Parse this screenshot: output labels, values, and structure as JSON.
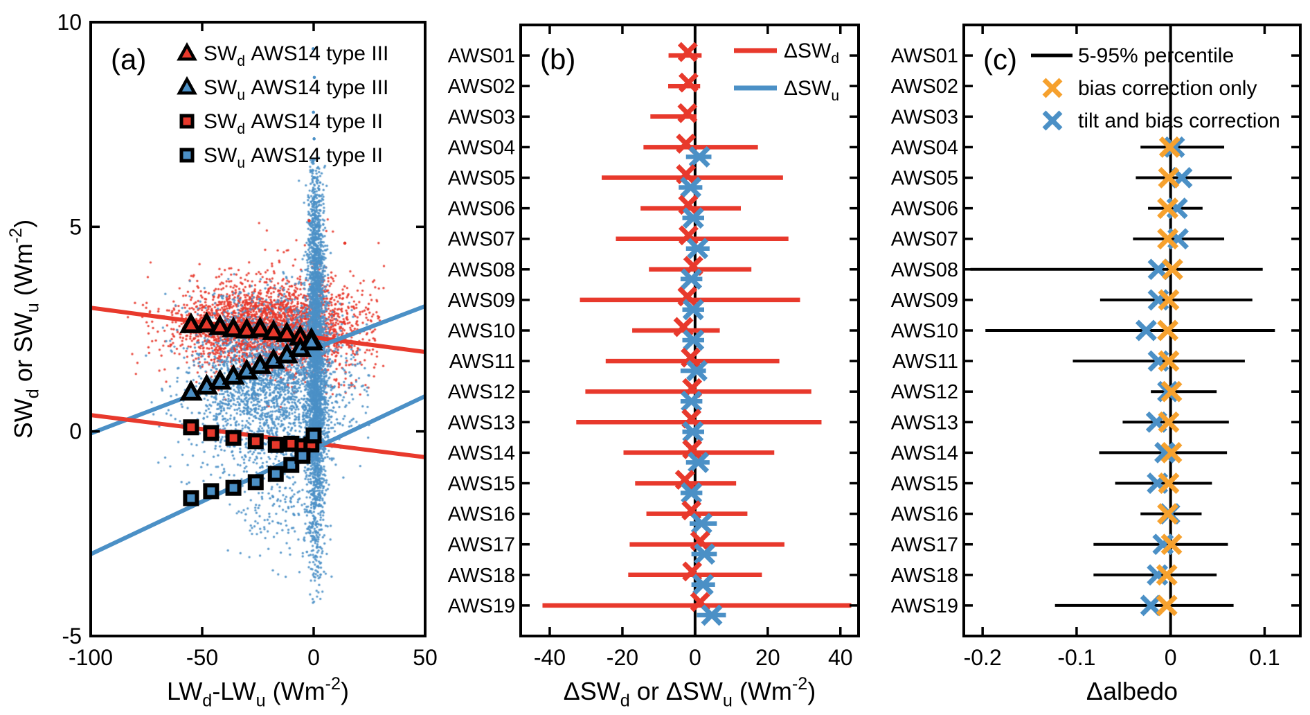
{
  "colors": {
    "red": "#e8392c",
    "blue": "#4b90c6",
    "orange": "#f6a12e",
    "axis": "#000000",
    "background": "#ffffff"
  },
  "chart_data": [
    {
      "id": "a",
      "type": "scatter",
      "panel_label": "(a)",
      "xlim": [
        -100,
        50
      ],
      "ylim": [
        -5,
        10
      ],
      "xticks": [
        -100,
        -50,
        0,
        50
      ],
      "yticks": [
        -5,
        0,
        5,
        10
      ],
      "xlabel": [
        [
          "LW"
        ],
        [
          "d",
          "sub"
        ],
        [
          "-LW"
        ],
        [
          "u",
          "sub"
        ],
        [
          " (Wm"
        ],
        [
          "-2",
          "sup"
        ],
        [
          ")"
        ]
      ],
      "ylabel": [
        [
          "SW"
        ],
        [
          "d",
          "sub"
        ],
        [
          " or SW"
        ],
        [
          "u",
          "sub"
        ],
        [
          " (Wm"
        ],
        [
          "-2",
          "sup"
        ],
        [
          ")"
        ]
      ],
      "legend": [
        {
          "marker": "triangle",
          "color": "red",
          "label": [
            [
              "SW"
            ],
            [
              "d",
              "sub"
            ],
            [
              " AWS14 type III"
            ]
          ]
        },
        {
          "marker": "triangle",
          "color": "blue",
          "label": [
            [
              "SW"
            ],
            [
              "u",
              "sub"
            ],
            [
              " AWS14 type III"
            ]
          ]
        },
        {
          "marker": "square",
          "color": "red",
          "label": [
            [
              "SW"
            ],
            [
              "d",
              "sub"
            ],
            [
              " AWS14 type II"
            ]
          ]
        },
        {
          "marker": "square",
          "color": "blue",
          "label": [
            [
              "SW"
            ],
            [
              "u",
              "sub"
            ],
            [
              " AWS14 type II"
            ]
          ]
        }
      ],
      "fit_lines": [
        {
          "name": "swd-type3-fit",
          "color": "red",
          "x": [
            -100,
            50
          ],
          "y": [
            3.02,
            1.94
          ]
        },
        {
          "name": "swu-type3-fit",
          "color": "blue",
          "x": [
            -100,
            50
          ],
          "y": [
            -0.05,
            3.06
          ]
        },
        {
          "name": "swd-type2-fit",
          "color": "red",
          "x": [
            -100,
            50
          ],
          "y": [
            0.4,
            -0.63
          ]
        },
        {
          "name": "swu-type2-fit",
          "color": "blue",
          "x": [
            -100,
            50
          ],
          "y": [
            -3.0,
            0.86
          ]
        }
      ],
      "binned_markers": [
        {
          "name": "swd-type3-bins",
          "marker": "triangle",
          "color": "red",
          "x": [
            -55,
            -48,
            -42,
            -36,
            -30,
            -24,
            -18,
            -12,
            -6,
            -1
          ],
          "y": [
            2.6,
            2.62,
            2.55,
            2.5,
            2.47,
            2.5,
            2.43,
            2.38,
            2.3,
            2.24
          ]
        },
        {
          "name": "swu-type3-bins",
          "marker": "triangle",
          "color": "blue",
          "x": [
            -55,
            -48,
            -42,
            -36,
            -30,
            -24,
            -18,
            -12,
            -6,
            -1
          ],
          "y": [
            0.95,
            1.1,
            1.22,
            1.34,
            1.47,
            1.6,
            1.73,
            1.86,
            2.02,
            2.18
          ]
        },
        {
          "name": "swd-type2-bins",
          "marker": "square",
          "color": "red",
          "x": [
            -55,
            -46,
            -36,
            -26,
            -17,
            -10,
            -5,
            -1
          ],
          "y": [
            0.1,
            -0.04,
            -0.16,
            -0.24,
            -0.33,
            -0.3,
            -0.36,
            -0.32
          ]
        },
        {
          "name": "swu-type2-bins",
          "marker": "square",
          "color": "blue",
          "x": [
            -55,
            -46,
            -36,
            -26,
            -17,
            -10,
            -5,
            0
          ],
          "y": [
            -1.63,
            -1.46,
            -1.38,
            -1.24,
            -1.04,
            -0.82,
            -0.6,
            -0.1
          ]
        }
      ],
      "scatter_clouds": [
        {
          "name": "swd-cloud-main",
          "color": "red",
          "n": 2400,
          "cx": -22,
          "cy": 2.52,
          "sx": 20,
          "sy": 0.52,
          "clip": [
            -84,
            30,
            1.2,
            4.4
          ]
        },
        {
          "name": "swd-cloud-spread",
          "color": "red",
          "n": 300,
          "cx": -12,
          "cy": 2.7,
          "sx": 26,
          "sy": 1.0,
          "clip": [
            -84,
            32,
            0.3,
            5.2
          ]
        },
        {
          "name": "swd-cloud-right",
          "color": "red",
          "n": 260,
          "cx": 6,
          "cy": 2.35,
          "sx": 10,
          "sy": 0.75,
          "clip": [
            -15,
            30,
            0.8,
            4.2
          ]
        },
        {
          "name": "swu-cloud-main",
          "color": "blue",
          "n": 2400,
          "cx": -20,
          "cy": 1.15,
          "sx": 18,
          "sy": 1.05,
          "clip": [
            -76,
            26,
            -2.5,
            3.9
          ]
        },
        {
          "name": "swu-cloud-lowtail",
          "color": "blue",
          "n": 150,
          "cx": -15,
          "cy": -1.8,
          "sx": 12,
          "sy": 0.8,
          "clip": [
            -50,
            5,
            -3.6,
            -0.3
          ]
        },
        {
          "name": "swu-plume",
          "color": "blue",
          "n": 2600,
          "cx": 1.2,
          "cy": 1.7,
          "sx": 2.3,
          "sy": 2.3,
          "clip": [
            -7,
            15,
            -4.5,
            6.7
          ]
        },
        {
          "name": "swu-plume-core",
          "color": "blue",
          "n": 700,
          "cx": 0.6,
          "cy": 2.6,
          "sx": 1.1,
          "sy": 2.0,
          "clip": [
            -3,
            6,
            -4.5,
            6.7
          ]
        }
      ],
      "outlier_points": [
        {
          "name": "swu-high-outliers",
          "color": "blue",
          "pts": [
            [
              -0.2,
              9.35
            ],
            [
              0.3,
              8.65
            ],
            [
              -0.1,
              7.8
            ],
            [
              0.2,
              7.15
            ],
            [
              -0.3,
              6.6
            ],
            [
              0.1,
              6.2
            ],
            [
              0.4,
              5.6
            ],
            [
              -0.2,
              5.3
            ],
            [
              0.1,
              4.95
            ]
          ]
        },
        {
          "name": "swd-high-outliers",
          "color": "red",
          "pts": [
            [
              -2,
              5.15
            ],
            [
              14,
              4.6
            ]
          ]
        }
      ]
    },
    {
      "id": "b",
      "type": "errorbar",
      "panel_label": "(b)",
      "xlim": [
        -48,
        45
      ],
      "xticks": [
        -40,
        -20,
        0,
        20,
        40
      ],
      "xlabel": [
        [
          "ΔSW"
        ],
        [
          "d",
          "sub"
        ],
        [
          " or ΔSW"
        ],
        [
          "u",
          "sub"
        ],
        [
          " (Wm"
        ],
        [
          "-2",
          "sup"
        ],
        [
          ")"
        ]
      ],
      "zero_line": true,
      "legend": [
        {
          "sample": "line",
          "color": "red",
          "label": [
            [
              "ΔSW"
            ],
            [
              "d",
              "sub"
            ]
          ]
        },
        {
          "sample": "line",
          "color": "blue",
          "label": [
            [
              "ΔSW"
            ],
            [
              "u",
              "sub"
            ]
          ]
        }
      ],
      "stations": [
        "AWS01",
        "AWS02",
        "AWS03",
        "AWS04",
        "AWS05",
        "AWS06",
        "AWS07",
        "AWS08",
        "AWS09",
        "AWS10",
        "AWS11",
        "AWS12",
        "AWS13",
        "AWS14",
        "AWS15",
        "AWS16",
        "AWS17",
        "AWS18",
        "AWS19"
      ],
      "rows": [
        {
          "station": "AWS01",
          "swd": {
            "bar": [
              -7.3,
              1.8
            ],
            "x": -2.0
          },
          "swu": null
        },
        {
          "station": "AWS02",
          "swd": {
            "bar": [
              -7.4,
              1.4
            ],
            "x": -1.8
          },
          "swu": null
        },
        {
          "station": "AWS03",
          "swd": {
            "bar": [
              -12.3,
              0.4
            ],
            "x": -2.1
          },
          "swu": null
        },
        {
          "station": "AWS04",
          "swd": {
            "bar": [
              -14.2,
              17.3
            ],
            "x": -2.5
          },
          "swu": {
            "bar": [
              -2.5,
              4.5
            ],
            "x": 1.2
          }
        },
        {
          "station": "AWS05",
          "swd": {
            "bar": [
              -25.7,
              24.2
            ],
            "x": -2.5
          },
          "swu": {
            "bar": [
              -4.5,
              2.0
            ],
            "x": -1.2
          }
        },
        {
          "station": "AWS06",
          "swd": {
            "bar": [
              -15.0,
              12.6
            ],
            "x": -1.9
          },
          "swu": {
            "bar": [
              -3.5,
              2.5
            ],
            "x": -0.5
          }
        },
        {
          "station": "AWS07",
          "swd": {
            "bar": [
              -21.8,
              25.7
            ],
            "x": -1.8
          },
          "swu": {
            "bar": [
              -2.5,
              4.0
            ],
            "x": 0.7
          }
        },
        {
          "station": "AWS08",
          "swd": {
            "bar": [
              -12.7,
              15.5
            ],
            "x": -0.5
          },
          "swu": {
            "bar": [
              -4.0,
              2.0
            ],
            "x": -1.0
          }
        },
        {
          "station": "AWS09",
          "swd": {
            "bar": [
              -31.7,
              28.9
            ],
            "x": -2.1
          },
          "swu": {
            "bar": [
              -3.5,
              2.5
            ],
            "x": -0.5
          }
        },
        {
          "station": "AWS10",
          "swd": {
            "bar": [
              -17.3,
              6.8
            ],
            "x": -3.2
          },
          "swu": {
            "bar": [
              -3.5,
              2.5
            ],
            "x": -0.4
          }
        },
        {
          "station": "AWS11",
          "swd": {
            "bar": [
              -24.6,
              23.2
            ],
            "x": -1.2
          },
          "swu": {
            "bar": [
              -4.0,
              3.0
            ],
            "x": 0.5
          }
        },
        {
          "station": "AWS12",
          "swd": {
            "bar": [
              -30.2,
              32.0
            ],
            "x": -0.8
          },
          "swu": {
            "bar": [
              -4.0,
              2.0
            ],
            "x": -1.0
          }
        },
        {
          "station": "AWS13",
          "swd": {
            "bar": [
              -32.7,
              34.8
            ],
            "x": -1.0
          },
          "swu": {
            "bar": [
              -3.5,
              2.5
            ],
            "x": -0.6
          }
        },
        {
          "station": "AWS14",
          "swd": {
            "bar": [
              -19.7,
              21.8
            ],
            "x": -0.8
          },
          "swu": {
            "bar": [
              -2.5,
              4.0
            ],
            "x": 0.9
          }
        },
        {
          "station": "AWS15",
          "swd": {
            "bar": [
              -16.5,
              11.3
            ],
            "x": -2.8
          },
          "swu": {
            "bar": [
              -4.0,
              2.0
            ],
            "x": -1.0
          }
        },
        {
          "station": "AWS16",
          "swd": {
            "bar": [
              -13.4,
              14.4
            ],
            "x": -1.0
          },
          "swu": {
            "bar": [
              -1.5,
              6.0
            ],
            "x": 1.8
          }
        },
        {
          "station": "AWS17",
          "swd": {
            "bar": [
              -18.0,
              24.6
            ],
            "x": 1.4
          },
          "swu": {
            "bar": [
              -1.0,
              6.0
            ],
            "x": 2.6
          }
        },
        {
          "station": "AWS18",
          "swd": {
            "bar": [
              -18.4,
              18.4
            ],
            "x": -0.8
          },
          "swu": {
            "bar": [
              -1.0,
              5.5
            ],
            "x": 2.2
          }
        },
        {
          "station": "AWS19",
          "swd": {
            "bar": [
              -42.0,
              43.0
            ],
            "x": 1.4
          },
          "swu": {
            "bar": [
              0.5,
              8.5
            ],
            "x": 4.6
          }
        }
      ]
    },
    {
      "id": "c",
      "type": "errorbar",
      "panel_label": "(c)",
      "xlim": [
        -0.22,
        0.138
      ],
      "xticks": [
        -0.2,
        -0.1,
        0,
        0.1
      ],
      "xlabel": [
        [
          "Δalbedo"
        ]
      ],
      "zero_line": true,
      "legend": [
        {
          "sample": "line",
          "color": "axis",
          "label": [
            [
              "5-95% percentile"
            ]
          ]
        },
        {
          "sample": "x",
          "color": "orange",
          "label": [
            [
              "bias correction only"
            ]
          ]
        },
        {
          "sample": "x",
          "color": "blue",
          "label": [
            [
              "tilt and bias correction"
            ]
          ]
        }
      ],
      "stations": [
        "AWS01",
        "AWS02",
        "AWS03",
        "AWS04",
        "AWS05",
        "AWS06",
        "AWS07",
        "AWS08",
        "AWS09",
        "AWS10",
        "AWS11",
        "AWS12",
        "AWS13",
        "AWS14",
        "AWS15",
        "AWS16",
        "AWS17",
        "AWS18",
        "AWS19"
      ],
      "rows": [
        {
          "station": "AWS01",
          "percentile": null,
          "bias_only": null,
          "tilt_bias": null
        },
        {
          "station": "AWS02",
          "percentile": null,
          "bias_only": null,
          "tilt_bias": null
        },
        {
          "station": "AWS03",
          "percentile": null,
          "bias_only": null,
          "tilt_bias": null
        },
        {
          "station": "AWS04",
          "percentile": [
            -0.032,
            0.057
          ],
          "bias_only": -0.001,
          "tilt_bias": 0.004
        },
        {
          "station": "AWS05",
          "percentile": [
            -0.037,
            0.065
          ],
          "bias_only": -0.002,
          "tilt_bias": 0.012
        },
        {
          "station": "AWS06",
          "percentile": [
            -0.024,
            0.034
          ],
          "bias_only": -0.003,
          "tilt_bias": 0.007
        },
        {
          "station": "AWS07",
          "percentile": [
            -0.04,
            0.057
          ],
          "bias_only": -0.003,
          "tilt_bias": 0.008
        },
        {
          "station": "AWS08",
          "percentile": [
            -0.213,
            0.098
          ],
          "bias_only": 0.002,
          "tilt_bias": -0.013
        },
        {
          "station": "AWS09",
          "percentile": [
            -0.075,
            0.087
          ],
          "bias_only": -0.002,
          "tilt_bias": -0.013
        },
        {
          "station": "AWS10",
          "percentile": [
            -0.197,
            0.111
          ],
          "bias_only": -0.003,
          "tilt_bias": -0.026
        },
        {
          "station": "AWS11",
          "percentile": [
            -0.104,
            0.079
          ],
          "bias_only": -0.002,
          "tilt_bias": -0.013
        },
        {
          "station": "AWS12",
          "percentile": [
            -0.021,
            0.049
          ],
          "bias_only": 0.001,
          "tilt_bias": -0.003
        },
        {
          "station": "AWS13",
          "percentile": [
            -0.051,
            0.062
          ],
          "bias_only": -0.002,
          "tilt_bias": -0.015
        },
        {
          "station": "AWS14",
          "percentile": [
            -0.076,
            0.06
          ],
          "bias_only": 0.001,
          "tilt_bias": -0.006
        },
        {
          "station": "AWS15",
          "percentile": [
            -0.059,
            0.044
          ],
          "bias_only": -0.002,
          "tilt_bias": -0.014
        },
        {
          "station": "AWS16",
          "percentile": [
            -0.032,
            0.033
          ],
          "bias_only": -0.003,
          "tilt_bias": -0.001
        },
        {
          "station": "AWS17",
          "percentile": [
            -0.082,
            0.061
          ],
          "bias_only": 0.001,
          "tilt_bias": -0.008
        },
        {
          "station": "AWS18",
          "percentile": [
            -0.082,
            0.049
          ],
          "bias_only": -0.004,
          "tilt_bias": -0.014
        },
        {
          "station": "AWS19",
          "percentile": [
            -0.123,
            0.067
          ],
          "bias_only": -0.004,
          "tilt_bias": -0.021
        }
      ]
    }
  ]
}
